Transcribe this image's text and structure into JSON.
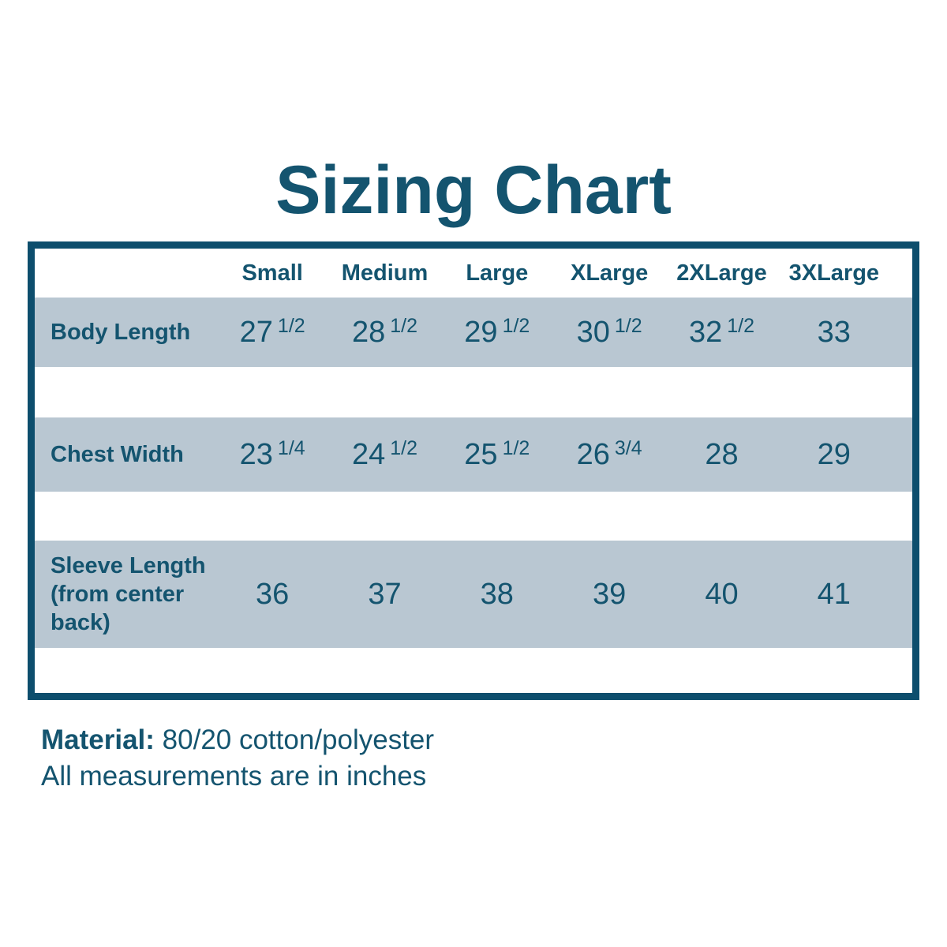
{
  "title": "Sizing Chart",
  "colors": {
    "accent": "#0d4e6d",
    "row_background": "#b9c7d2",
    "text": "#14546f",
    "page_background": "#ffffff"
  },
  "table": {
    "columns": [
      "Small",
      "Medium",
      "Large",
      "XLarge",
      "2XLarge",
      "3XLarge"
    ],
    "rows": [
      {
        "key": "body-length",
        "label": "Body Length",
        "values": [
          {
            "n": "27",
            "f": "1/2"
          },
          {
            "n": "28",
            "f": "1/2"
          },
          {
            "n": "29",
            "f": "1/2"
          },
          {
            "n": "30",
            "f": "1/2"
          },
          {
            "n": "32",
            "f": "1/2"
          },
          {
            "n": "33"
          }
        ]
      },
      {
        "key": "chest-width",
        "label": "Chest Width",
        "values": [
          {
            "n": "23",
            "f": "1/4"
          },
          {
            "n": "24",
            "f": "1/2"
          },
          {
            "n": "25",
            "f": "1/2"
          },
          {
            "n": "26",
            "f": "3/4"
          },
          {
            "n": "28"
          },
          {
            "n": "29"
          }
        ]
      },
      {
        "key": "sleeve-length",
        "label": "Sleeve Length (from center back)",
        "values": [
          {
            "n": "36"
          },
          {
            "n": "37"
          },
          {
            "n": "38"
          },
          {
            "n": "39"
          },
          {
            "n": "40"
          },
          {
            "n": "41"
          }
        ]
      }
    ]
  },
  "footer": {
    "material_label": "Material:",
    "material_value": " 80/20 cotton/polyester",
    "note": "All measurements are in inches"
  },
  "chart_data": {
    "type": "table",
    "title": "Sizing Chart",
    "columns": [
      "Small",
      "Medium",
      "Large",
      "XLarge",
      "2XLarge",
      "3XLarge"
    ],
    "rows": [
      {
        "label": "Body Length",
        "values": [
          27.5,
          28.5,
          29.5,
          30.5,
          32.5,
          33
        ]
      },
      {
        "label": "Chest Width",
        "values": [
          23.25,
          24.5,
          25.5,
          26.75,
          28,
          29
        ]
      },
      {
        "label": "Sleeve Length (from center back)",
        "values": [
          36,
          37,
          38,
          39,
          40,
          41
        ]
      }
    ],
    "notes": [
      "Material: 80/20 cotton/polyester",
      "All measurements are in inches"
    ]
  }
}
